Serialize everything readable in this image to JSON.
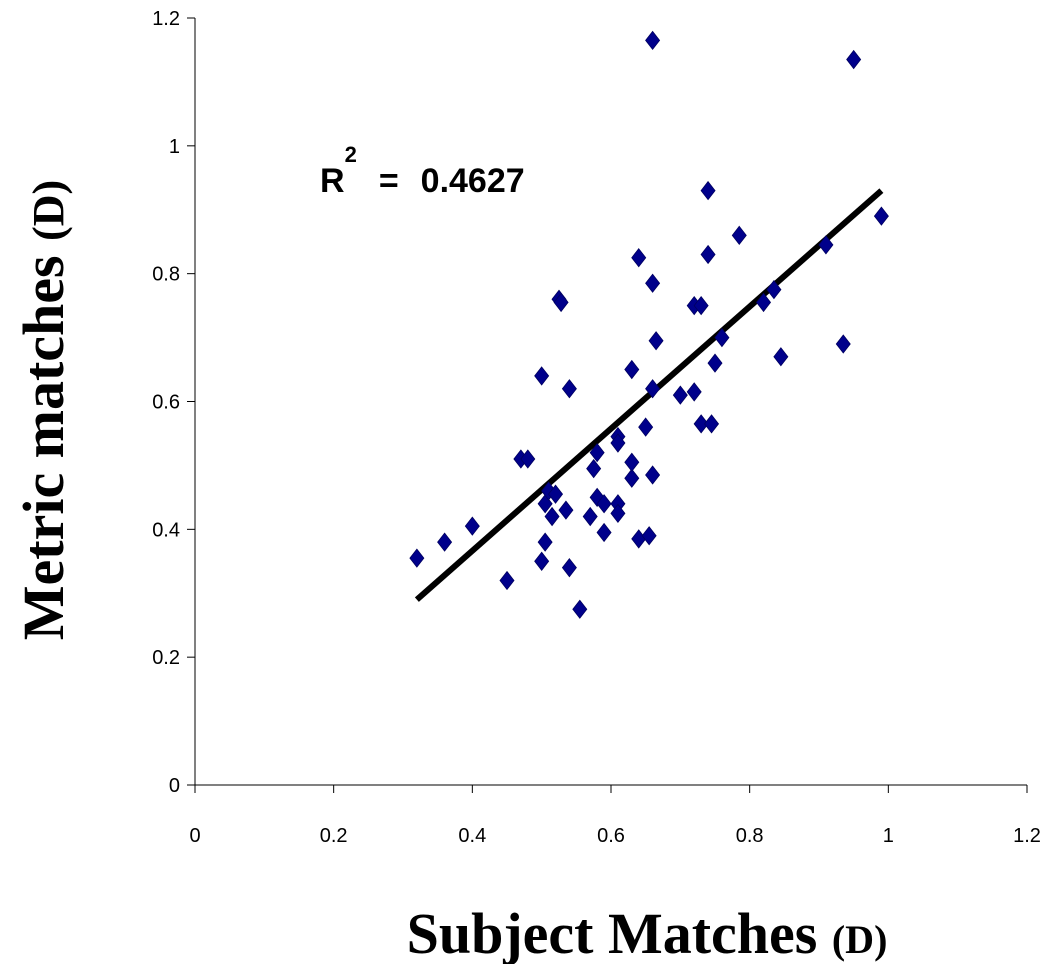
{
  "chart_data": {
    "type": "scatter",
    "title": "",
    "ylabel_main": "Metric matches ",
    "ylabel_unit": "(D)",
    "xlabel_main": "Subject Matches ",
    "xlabel_unit": "(D)",
    "xlim": [
      0,
      1.2
    ],
    "ylim": [
      0,
      1.2
    ],
    "xticks": [
      "0",
      "0.2",
      "0.4",
      "0.6",
      "0.8",
      "1",
      "1.2"
    ],
    "yticks": [
      "0",
      "0.2",
      "0.4",
      "0.6",
      "0.8",
      "1",
      "1.2"
    ],
    "grid": false,
    "marker_color": "#00008B",
    "trendline": {
      "x": [
        0.32,
        0.99
      ],
      "y": [
        0.29,
        0.93
      ]
    },
    "annotation": {
      "r_letter": "R",
      "exponent": "2",
      "equals": "=",
      "value": "0.4627"
    },
    "points": [
      [
        0.32,
        0.355
      ],
      [
        0.36,
        0.38
      ],
      [
        0.4,
        0.405
      ],
      [
        0.45,
        0.32
      ],
      [
        0.47,
        0.51
      ],
      [
        0.48,
        0.51
      ],
      [
        0.5,
        0.64
      ],
      [
        0.5,
        0.35
      ],
      [
        0.505,
        0.38
      ],
      [
        0.505,
        0.44
      ],
      [
        0.51,
        0.46
      ],
      [
        0.515,
        0.42
      ],
      [
        0.52,
        0.455
      ],
      [
        0.525,
        0.76
      ],
      [
        0.528,
        0.755
      ],
      [
        0.535,
        0.43
      ],
      [
        0.54,
        0.34
      ],
      [
        0.54,
        0.62
      ],
      [
        0.555,
        0.275
      ],
      [
        0.57,
        0.42
      ],
      [
        0.575,
        0.495
      ],
      [
        0.58,
        0.45
      ],
      [
        0.58,
        0.52
      ],
      [
        0.59,
        0.44
      ],
      [
        0.59,
        0.395
      ],
      [
        0.61,
        0.545
      ],
      [
        0.61,
        0.44
      ],
      [
        0.61,
        0.425
      ],
      [
        0.61,
        0.535
      ],
      [
        0.63,
        0.48
      ],
      [
        0.63,
        0.65
      ],
      [
        0.63,
        0.505
      ],
      [
        0.64,
        0.385
      ],
      [
        0.64,
        0.825
      ],
      [
        0.65,
        0.56
      ],
      [
        0.655,
        0.39
      ],
      [
        0.66,
        0.785
      ],
      [
        0.66,
        0.485
      ],
      [
        0.66,
        0.62
      ],
      [
        0.66,
        1.165
      ],
      [
        0.665,
        0.695
      ],
      [
        0.7,
        0.61
      ],
      [
        0.72,
        0.615
      ],
      [
        0.72,
        0.75
      ],
      [
        0.73,
        0.75
      ],
      [
        0.73,
        0.565
      ],
      [
        0.74,
        0.93
      ],
      [
        0.74,
        0.83
      ],
      [
        0.745,
        0.565
      ],
      [
        0.75,
        0.66
      ],
      [
        0.76,
        0.7
      ],
      [
        0.785,
        0.86
      ],
      [
        0.82,
        0.755
      ],
      [
        0.835,
        0.775
      ],
      [
        0.845,
        0.67
      ],
      [
        0.91,
        0.845
      ],
      [
        0.935,
        0.69
      ],
      [
        0.95,
        1.135
      ],
      [
        0.99,
        0.89
      ]
    ]
  }
}
